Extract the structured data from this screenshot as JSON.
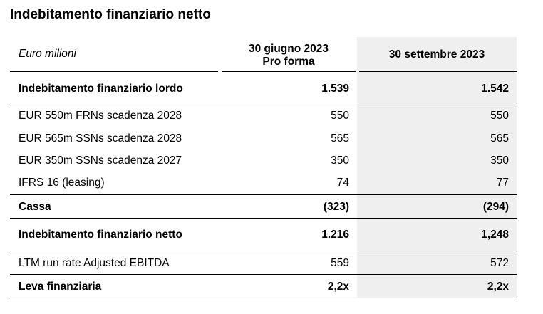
{
  "title": "Indebitamento finanziario netto",
  "header": {
    "unit": "Euro milioni",
    "col1_line1": "30 giugno 2023",
    "col1_line2": "Pro forma",
    "col2": "30 settembre 2023"
  },
  "rows": [
    {
      "label": "Indebitamento finanziario lordo",
      "v1": "1.539",
      "v2": "1.542",
      "bold": true
    },
    {
      "label": "EUR 550m FRNs scadenza 2028",
      "v1": "550",
      "v2": "550",
      "bold": false
    },
    {
      "label": "EUR 565m SSNs scadenza 2028",
      "v1": "565",
      "v2": "565",
      "bold": false
    },
    {
      "label": "EUR 350m SSNs scadenza 2027",
      "v1": "350",
      "v2": "350",
      "bold": false
    },
    {
      "label": "IFRS 16 (leasing)",
      "v1": "74",
      "v2": "77",
      "bold": false
    },
    {
      "label": "Cassa",
      "v1": "(323)",
      "v2": "(294)",
      "bold": true
    },
    {
      "label": "Indebitamento finanziario netto",
      "v1": "1.216",
      "v2": "1,248",
      "bold": true
    },
    {
      "label": "LTM run rate Adjusted EBITDA",
      "v1": "559",
      "v2": "572",
      "bold": false
    },
    {
      "label": "Leva finanziaria",
      "v1": "2,2x",
      "v2": "2,2x",
      "bold": true
    }
  ]
}
